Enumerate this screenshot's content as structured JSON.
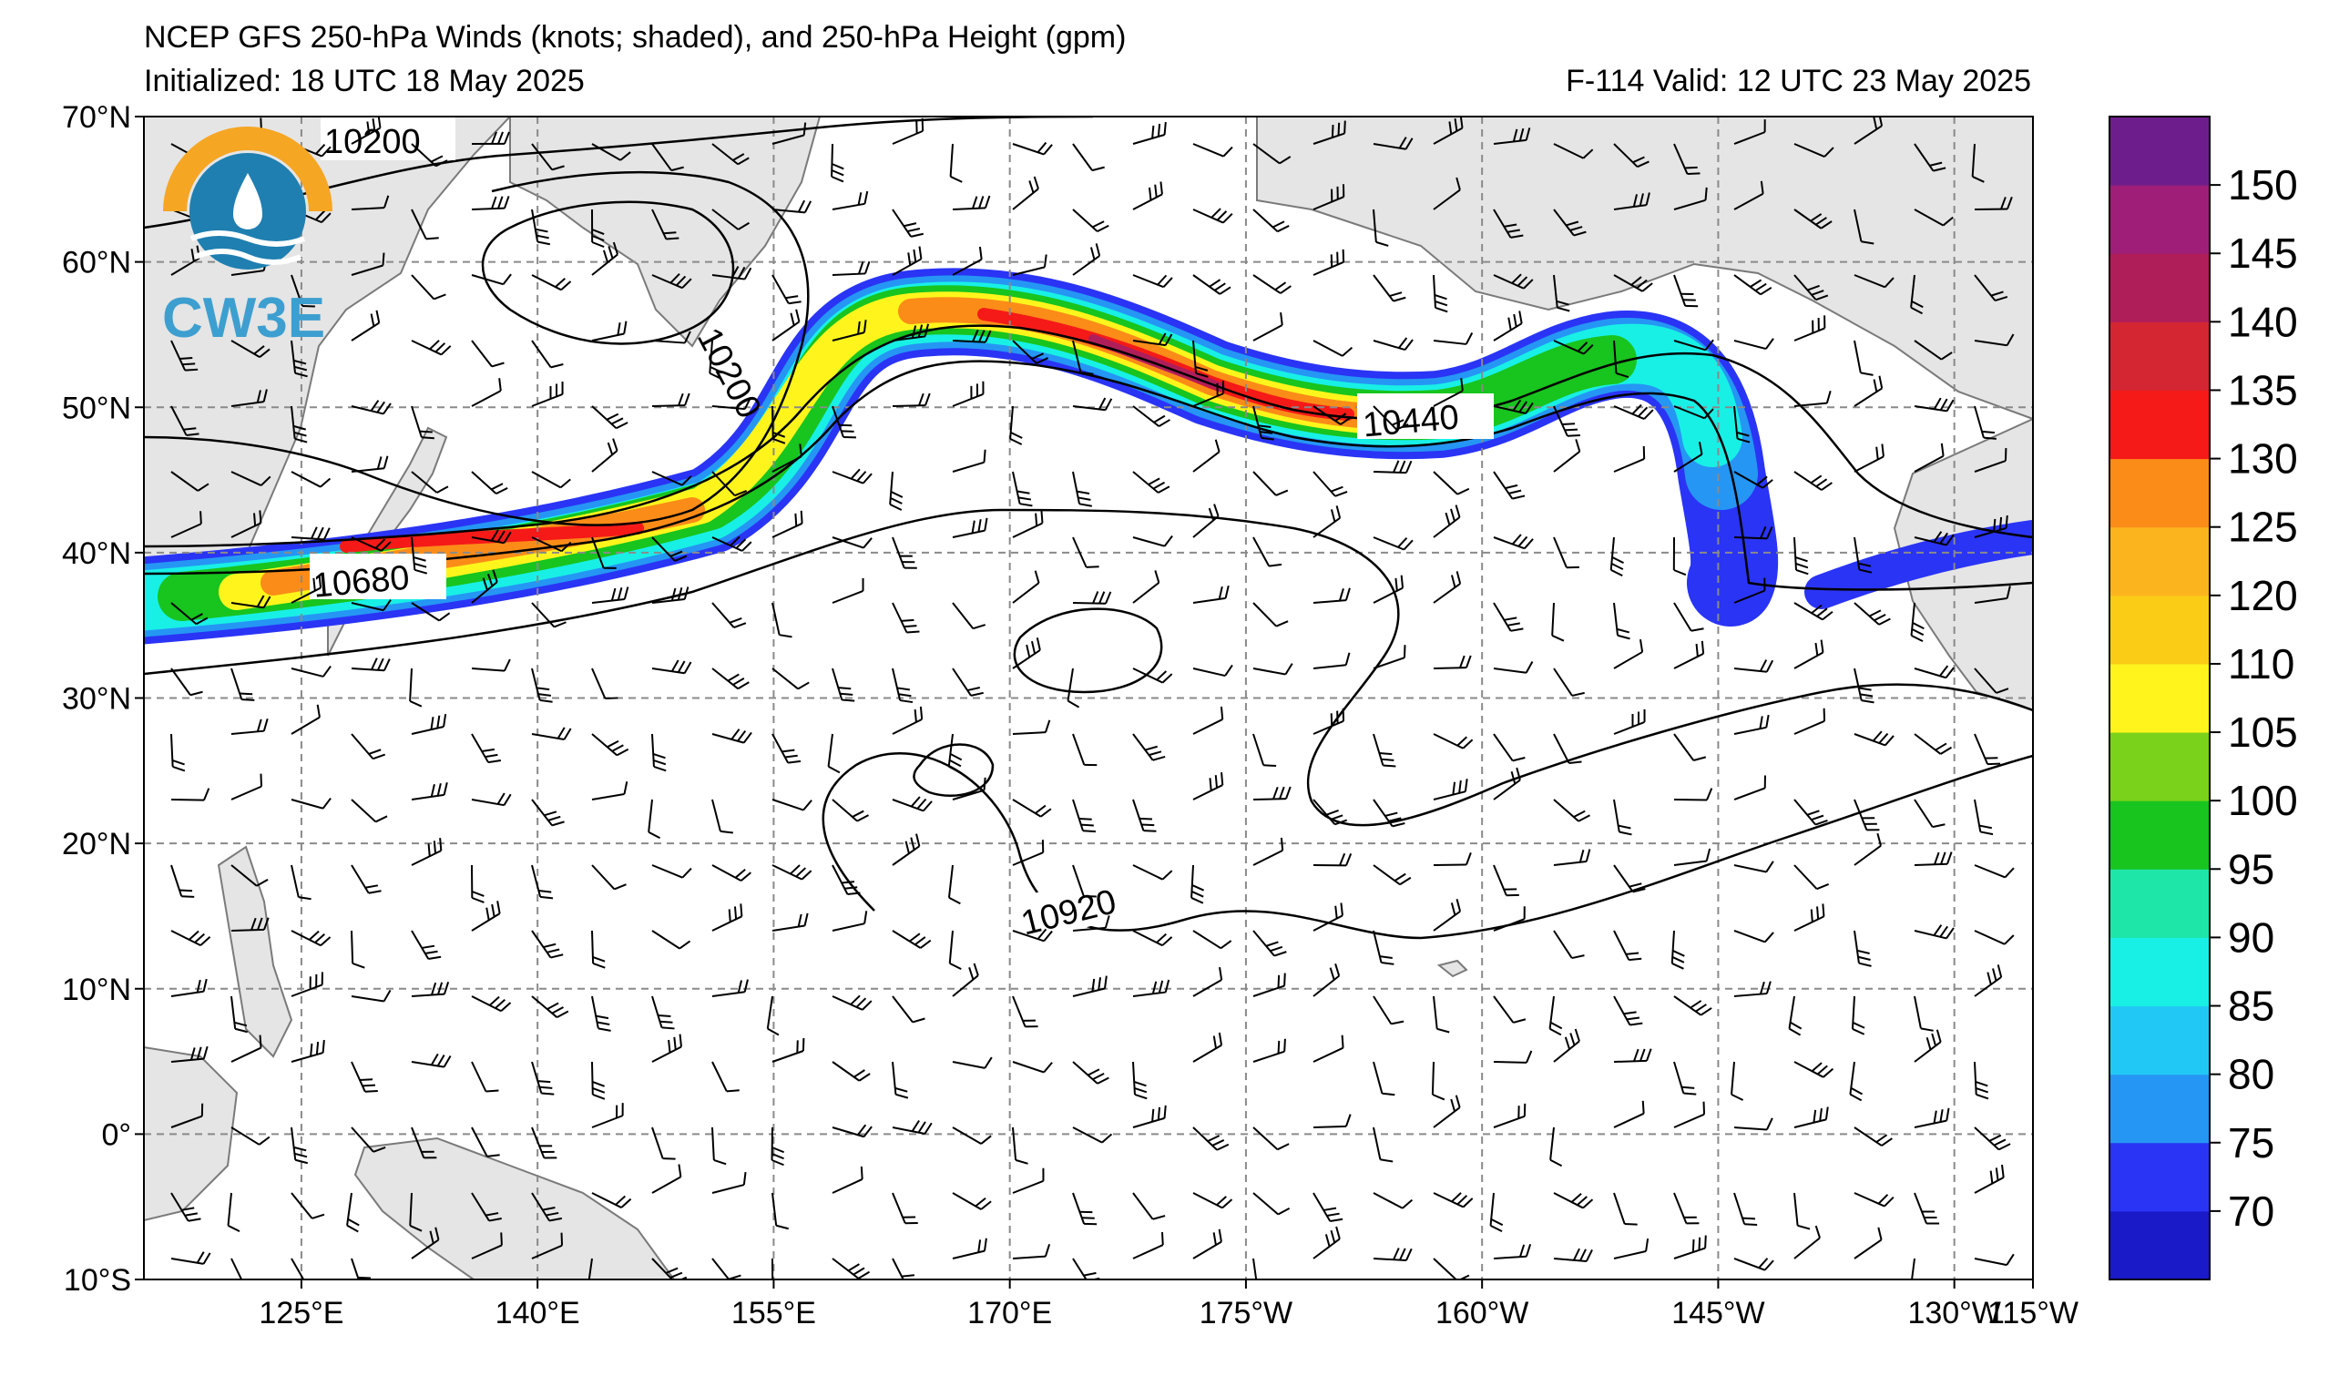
{
  "header": {
    "title": "NCEP GFS 250-hPa Winds (knots; shaded), and 250-hPa Height (gpm)",
    "initialized": "Initialized: 18 UTC 18 May 2025",
    "valid": "F-114  Valid: 12 UTC 23 May 2025"
  },
  "logo": {
    "text": "CW3E"
  },
  "map": {
    "lat_labels": [
      "70°N",
      "60°N",
      "50°N",
      "40°N",
      "30°N",
      "20°N",
      "10°N",
      "0°",
      "10°S"
    ],
    "lon_labels": [
      "125°E",
      "140°E",
      "155°E",
      "170°E",
      "175°W",
      "160°W",
      "145°W",
      "130°W",
      "115°W"
    ],
    "contour_labels": [
      "10200",
      "10200",
      "10440",
      "10680",
      "10920"
    ],
    "land_color": "#e5e5e5",
    "coast_color": "#7a7a7a"
  },
  "colorbar": {
    "ticks": [
      "150",
      "145",
      "140",
      "135",
      "130",
      "125",
      "120",
      "110",
      "105",
      "100",
      "95",
      "90",
      "85",
      "80",
      "75",
      "70"
    ],
    "colors": [
      "#1a1ac8",
      "#2a34f5",
      "#2596f4",
      "#22c8f5",
      "#18f0e6",
      "#1ee6a8",
      "#18c41e",
      "#7ad21a",
      "#fff51c",
      "#fbcc15",
      "#fbb41e",
      "#fb8c18",
      "#f51a18",
      "#d42632",
      "#b01e5a",
      "#9e1e78",
      "#6e1e8c"
    ]
  }
}
